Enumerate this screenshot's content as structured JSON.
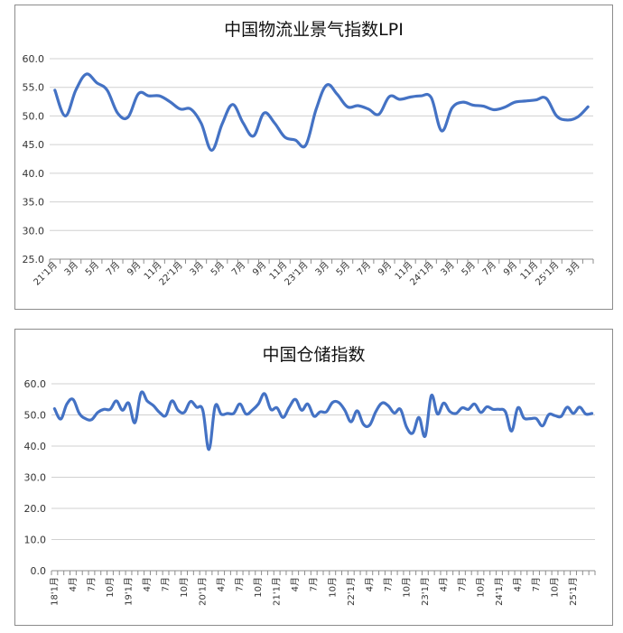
{
  "chart_data": [
    {
      "type": "line",
      "title": "中国物流业景气指数LPI",
      "xlabel": "",
      "ylabel": "",
      "ylim": [
        25,
        60
      ],
      "yticks": [
        "25.0",
        "30.0",
        "35.0",
        "40.0",
        "45.0",
        "50.0",
        "55.0",
        "60.0"
      ],
      "grid": true,
      "color": "#4472c4",
      "categories": [
        "21'1月",
        "2月",
        "3月",
        "4月",
        "5月",
        "6月",
        "7月",
        "8月",
        "9月",
        "10月",
        "11月",
        "12月",
        "22'1月",
        "2月",
        "3月",
        "4月",
        "5月",
        "6月",
        "7月",
        "8月",
        "9月",
        "10月",
        "11月",
        "12月",
        "23'1月",
        "2月",
        "3月",
        "4月",
        "5月",
        "6月",
        "7月",
        "8月",
        "9月",
        "10月",
        "11月",
        "12月",
        "24'1月",
        "2月",
        "3月",
        "4月",
        "5月",
        "6月",
        "7月",
        "8月",
        "9月",
        "10月",
        "11月",
        "12月",
        "25'1月",
        "2月",
        "3月",
        "4月"
      ],
      "tick_labels": [
        "21'1月",
        "",
        "3月",
        "",
        "5月",
        "",
        "7月",
        "",
        "9月",
        "",
        "11月",
        "",
        "22'1月",
        "",
        "3月",
        "",
        "5月",
        "",
        "7月",
        "",
        "9月",
        "",
        "11月",
        "",
        "23'1月",
        "",
        "3月",
        "",
        "5月",
        "",
        "7月",
        "",
        "9月",
        "",
        "11月",
        "",
        "24'1月",
        "",
        "3月",
        "",
        "5月",
        "",
        "7月",
        "",
        "9月",
        "",
        "11月",
        "",
        "25'1月",
        "",
        "3月",
        ""
      ],
      "series": [
        {
          "values": [
            54.5,
            50.0,
            54.5,
            57.3,
            55.8,
            54.5,
            50.5,
            49.8,
            53.9,
            53.5,
            53.5,
            52.5,
            51.2,
            51.2,
            48.7,
            44.0,
            48.6,
            52.0,
            48.8,
            46.5,
            50.5,
            48.8,
            46.3,
            45.8,
            44.9,
            51.2,
            55.4,
            53.8,
            51.6,
            51.8,
            51.2,
            50.3,
            53.4,
            52.9,
            53.3,
            53.5,
            53.2,
            47.4,
            51.4,
            52.4,
            51.9,
            51.7,
            51.1,
            51.5,
            52.4,
            52.6,
            52.8,
            53.1,
            50.0,
            49.3,
            49.8,
            51.6
          ]
        }
      ]
    },
    {
      "type": "line",
      "title": "中国仓储指数",
      "xlabel": "",
      "ylabel": "",
      "ylim": [
        0,
        60
      ],
      "yticks": [
        "0.0",
        "10.0",
        "20.0",
        "30.0",
        "40.0",
        "50.0",
        "60.0"
      ],
      "grid": true,
      "color": "#4472c4",
      "categories": [
        "18'1月",
        "2月",
        "3月",
        "4月",
        "5月",
        "6月",
        "7月",
        "8月",
        "9月",
        "10月",
        "11月",
        "12月",
        "19'1月",
        "2月",
        "3月",
        "4月",
        "5月",
        "6月",
        "7月",
        "8月",
        "9月",
        "10月",
        "11月",
        "12月",
        "20'1月",
        "2月",
        "3月",
        "4月",
        "5月",
        "6月",
        "7月",
        "8月",
        "9月",
        "10月",
        "11月",
        "12月",
        "21'1月",
        "2月",
        "3月",
        "4月",
        "5月",
        "6月",
        "7月",
        "8月",
        "9月",
        "10月",
        "11月",
        "12月",
        "22'1月",
        "2月",
        "3月",
        "4月",
        "5月",
        "6月",
        "7月",
        "8月",
        "9月",
        "10月",
        "11月",
        "12月",
        "23'1月",
        "2月",
        "3月",
        "4月",
        "5月",
        "6月",
        "7月",
        "8月",
        "9月",
        "10月",
        "11月",
        "12月",
        "24'1月",
        "2月",
        "3月",
        "4月",
        "5月",
        "6月",
        "7月",
        "8月",
        "9月",
        "10月",
        "11月",
        "12月",
        "25'1月",
        "2月",
        "3月",
        "4月"
      ],
      "tick_labels": [
        "18'1月",
        "",
        "",
        "4月",
        "",
        "",
        "7月",
        "",
        "",
        "10月",
        "",
        "",
        "19'1月",
        "",
        "",
        "4月",
        "",
        "",
        "7月",
        "",
        "",
        "10月",
        "",
        "",
        "20'1月",
        "",
        "",
        "4月",
        "",
        "",
        "7月",
        "",
        "",
        "10月",
        "",
        "",
        "21'1月",
        "",
        "",
        "4月",
        "",
        "",
        "7月",
        "",
        "",
        "10月",
        "",
        "",
        "22'1月",
        "",
        "",
        "4月",
        "",
        "",
        "7月",
        "",
        "",
        "10月",
        "",
        "",
        "23'1月",
        "",
        "",
        "4月",
        "",
        "",
        "7月",
        "",
        "",
        "10月",
        "",
        "",
        "24'1月",
        "",
        "",
        "4月",
        "",
        "",
        "7月",
        "",
        "",
        "10月",
        "",
        "",
        "25'1月",
        "",
        "",
        ""
      ],
      "series": [
        {
          "values": [
            52.0,
            48.7,
            53.5,
            55.0,
            50.5,
            48.8,
            48.5,
            50.8,
            51.8,
            51.8,
            54.5,
            51.5,
            53.8,
            47.5,
            57.1,
            54.5,
            53.0,
            50.8,
            49.8,
            54.5,
            51.5,
            50.8,
            54.3,
            52.5,
            51.5,
            38.9,
            52.8,
            50.2,
            50.5,
            50.5,
            53.5,
            50.3,
            51.5,
            53.5,
            56.8,
            51.8,
            52.3,
            49.2,
            52.5,
            55.0,
            51.5,
            53.5,
            49.6,
            51.0,
            51.0,
            54.0,
            54.0,
            51.5,
            47.8,
            51.3,
            47.0,
            46.7,
            51.0,
            53.8,
            53.0,
            50.6,
            51.8,
            46.0,
            44.2,
            49.2,
            43.2,
            56.2,
            50.3,
            53.8,
            51.1,
            50.5,
            52.3,
            51.8,
            53.5,
            50.8,
            52.6,
            51.8,
            51.8,
            51.0,
            44.8,
            52.3,
            49.0,
            48.8,
            48.8,
            46.5,
            50.1,
            49.8,
            49.5,
            52.5,
            50.5,
            52.5,
            50.3,
            50.5
          ]
        }
      ]
    }
  ]
}
